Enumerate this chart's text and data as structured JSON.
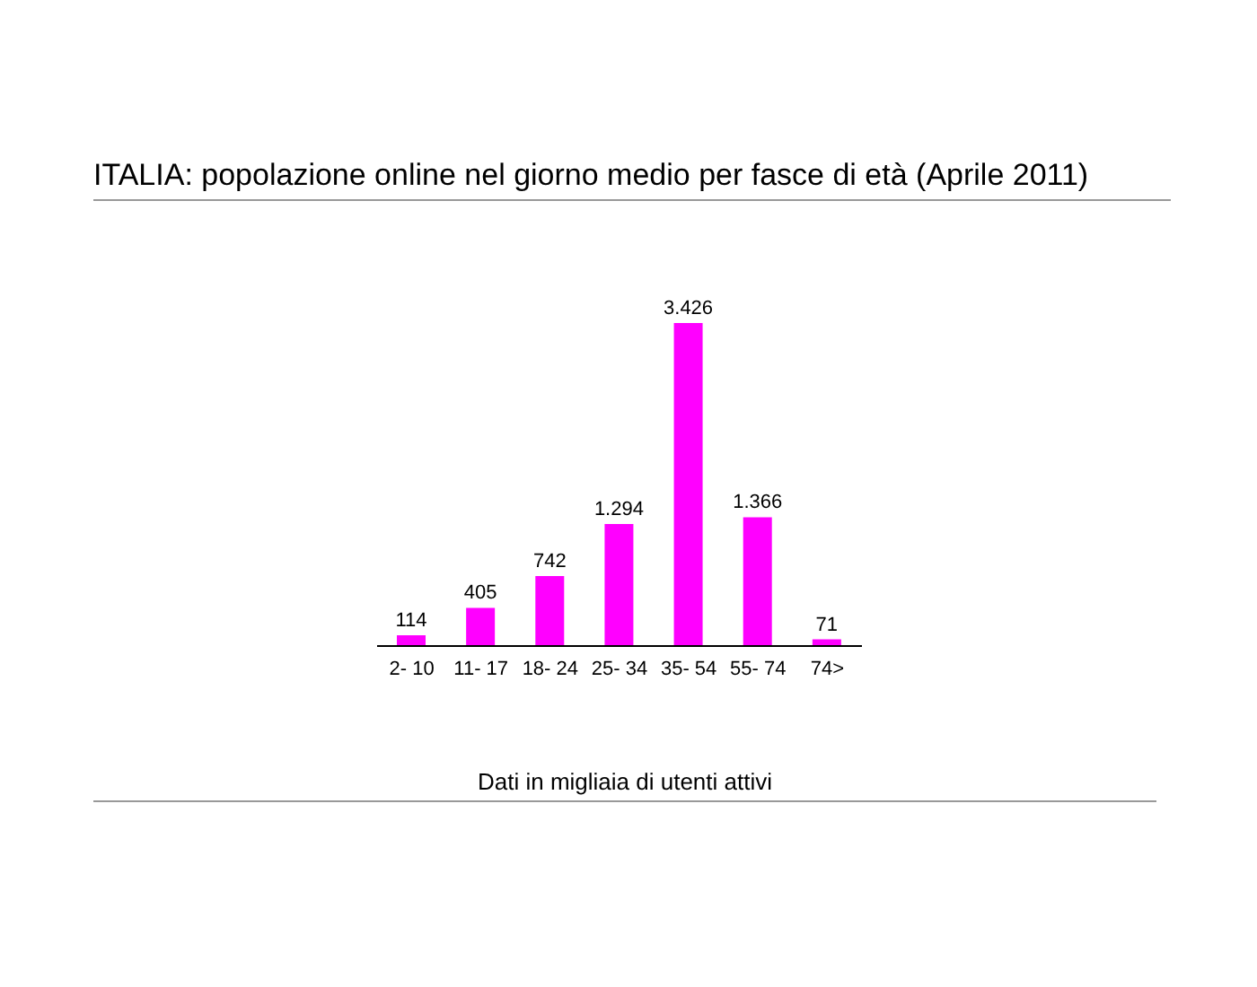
{
  "chart_data": {
    "type": "bar",
    "title": "ITALIA: popolazione online nel giorno medio per fasce di età (Aprile 2011)",
    "categories": [
      "2- 10",
      "11- 17",
      "18- 24",
      "25- 34",
      "35- 54",
      "55- 74",
      "74>"
    ],
    "values": [
      114,
      405,
      742,
      1294,
      3426,
      1366,
      71
    ],
    "value_labels": [
      "114",
      "405",
      "742",
      "1.294",
      "3.426",
      "1.366",
      "71"
    ],
    "color": "#ff00ff",
    "annotations": [
      "Dati in migliaia di utenti attivi"
    ]
  }
}
